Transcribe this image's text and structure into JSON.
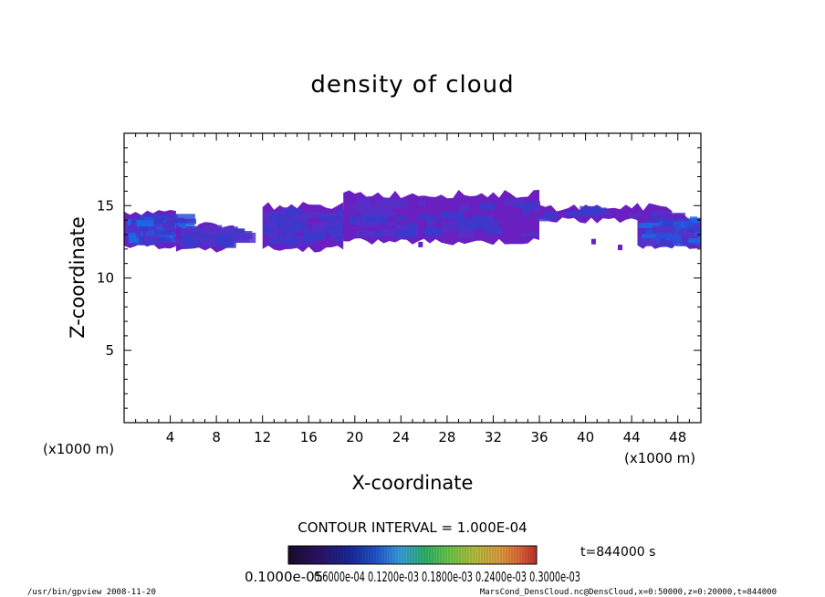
{
  "chart_data": {
    "type": "heatmap",
    "title": "density of cloud",
    "xlabel": "X-coordinate",
    "ylabel": "Z-coordinate",
    "x_unit_left": "(x1000 m)",
    "x_unit_right": "(x1000 m)",
    "xlim": [
      0,
      50
    ],
    "ylim": [
      0,
      20
    ],
    "x_ticks": [
      "4",
      "8",
      "12",
      "16",
      "20",
      "24",
      "28",
      "32",
      "36",
      "40",
      "44",
      "48"
    ],
    "x_tick_values": [
      4,
      8,
      12,
      16,
      20,
      24,
      28,
      32,
      36,
      40,
      44,
      48
    ],
    "y_ticks": [
      "5",
      "10",
      "15"
    ],
    "y_tick_values": [
      5,
      10,
      15
    ],
    "contour_interval": "CONTOUR INTERVAL = 1.000E-04",
    "time_label": "t=844000 s",
    "colorbar_labels": "0.1000e-05",
    "colorbar_labels_overlap": "0.6000e-04  0.1200e-03  0.1800e-03  0.2400e-03  0.3000e-03",
    "footer_left": "/usr/bin/gpview   2008-11-20",
    "footer_right": "MarsCond_DensCloud.nc@DensCloud,x=0:50000,z=0:20000,t=844000",
    "colorbar_colors": [
      "#1a0b2e",
      "#2b1466",
      "#1a2a9a",
      "#2255cc",
      "#3aa0e0",
      "#2fb36b",
      "#6fc94a",
      "#b8c040",
      "#e0a040",
      "#e06a3a",
      "#c03030"
    ],
    "cloud_colors": [
      "#6a1fc0",
      "#5530c8",
      "#3a3acc",
      "#2a50d8",
      "#1a6ae8"
    ],
    "cloud_blobs": [
      {
        "x": [
          0,
          4.5
        ],
        "z_base": 12.2,
        "z_top": 14.6,
        "density": "high"
      },
      {
        "x": [
          4.5,
          9.5
        ],
        "z_base": 12.0,
        "z_top": 13.6,
        "density": "medium"
      },
      {
        "x": [
          12,
          19
        ],
        "z_base": 12.0,
        "z_top": 15.0,
        "density": "medium"
      },
      {
        "x": [
          19,
          36
        ],
        "z_base": 12.5,
        "z_top": 15.8,
        "density": "medium"
      },
      {
        "x": [
          36,
          47.5
        ],
        "z_base": 14.0,
        "z_top": 14.9,
        "density": "low"
      },
      {
        "x": [
          44.5,
          50
        ],
        "z_base": 12.2,
        "z_top": 14.2,
        "density": "high"
      }
    ]
  }
}
